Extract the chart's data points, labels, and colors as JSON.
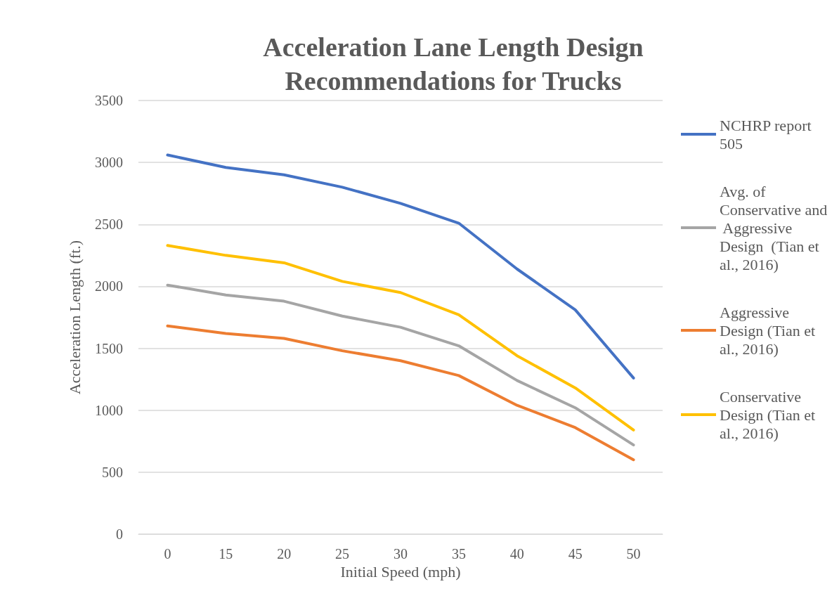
{
  "chart_data": {
    "type": "line",
    "title": "Acceleration Lane Length Design\nRecommendations for Trucks",
    "xlabel": "Initial Speed (mph)",
    "ylabel": "Acceleration Length (ft.)",
    "categories": [
      "0",
      "15",
      "20",
      "25",
      "30",
      "35",
      "40",
      "45",
      "50"
    ],
    "series": [
      {
        "name": "NCHRP report 505",
        "color": "#4472c4",
        "values": [
          3060,
          2960,
          2900,
          2800,
          2670,
          2510,
          2140,
          1810,
          1260
        ]
      },
      {
        "name": "Avg. of Conservative and Aggressive Design  (Tian et al., 2016)",
        "color": "#a5a5a5",
        "values": [
          2010,
          1930,
          1880,
          1760,
          1670,
          1520,
          1240,
          1020,
          720
        ]
      },
      {
        "name": "Aggressive Design (Tian et al., 2016)",
        "color": "#ed7d31",
        "values": [
          1680,
          1620,
          1580,
          1480,
          1400,
          1280,
          1040,
          860,
          600
        ]
      },
      {
        "name": "Conservative Design (Tian et al., 2016)",
        "color": "#ffc000",
        "values": [
          2330,
          2250,
          2190,
          2040,
          1950,
          1770,
          1440,
          1180,
          840
        ]
      }
    ],
    "ylim": [
      0,
      3500
    ],
    "yticks": [
      0,
      500,
      1000,
      1500,
      2000,
      2500,
      3000,
      3500
    ],
    "grid": "y",
    "legend": "right",
    "marker": "none",
    "line_style": "solid"
  }
}
